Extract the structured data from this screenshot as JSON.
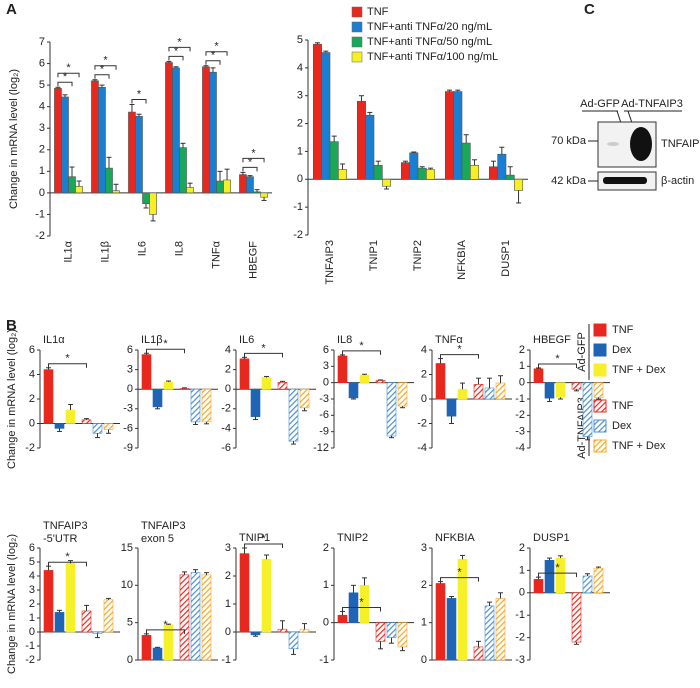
{
  "panel_labels": [
    "A",
    "B",
    "C"
  ],
  "legend_a": [
    {
      "name": "TNF",
      "color": "#e8281e"
    },
    {
      "name": "TNF+anti TNFα/20 ng/mL",
      "color": "#1b7fd1"
    },
    {
      "name": "TNF+anti TNFα/50 ng/mL",
      "color": "#19a85a"
    },
    {
      "name": "TNF+anti TNFα/100 ng/mL",
      "color": "#f7ef25"
    }
  ],
  "legend_b": {
    "groups": [
      {
        "label": "Ad-GFP",
        "hatched": false,
        "entries": [
          {
            "name": "TNF",
            "color": "#e8281e"
          },
          {
            "name": "Dex",
            "color": "#1f64b5"
          },
          {
            "name": "TNF + Dex",
            "color": "#f5f028"
          }
        ]
      },
      {
        "label": "Ad-TNFAIP3",
        "hatched": true,
        "entries": [
          {
            "name": "TNF",
            "color": "#e8281e"
          },
          {
            "name": "Dex",
            "color": "#4a90d0"
          },
          {
            "name": "TNF + Dex",
            "color": "#f5a623"
          }
        ]
      }
    ]
  },
  "blot": {
    "lanes": [
      "Ad-GFP",
      "Ad-TNFAIP3"
    ],
    "markers": [
      "70 kDa",
      "42 kDa"
    ],
    "bands": [
      "TNFAIP3",
      "β-actin"
    ]
  },
  "chart_data": [
    {
      "type": "bar",
      "ylabel": "Change in mRNA level (log₂)",
      "categories": [
        "IL1α",
        "IL1β",
        "IL6",
        "IL8",
        "TNFα",
        "HBEGF"
      ],
      "series": [
        {
          "values": [
            4.85,
            5.2,
            3.75,
            6.05,
            5.85,
            0.85
          ],
          "errors": [
            0.05,
            0.05,
            0.35,
            0.05,
            0.05,
            0.1
          ]
        },
        {
          "values": [
            4.45,
            4.9,
            3.55,
            5.8,
            5.6,
            0.75
          ],
          "errors": [
            0.1,
            0.1,
            0.1,
            0.05,
            0.2,
            0.05
          ]
        },
        {
          "values": [
            0.75,
            1.15,
            -0.5,
            2.1,
            0.55,
            0.05
          ],
          "errors": [
            0.45,
            0.5,
            0.2,
            0.2,
            0.45,
            0.1
          ]
        },
        {
          "values": [
            0.3,
            0.1,
            -1.0,
            0.25,
            0.6,
            -0.2
          ],
          "errors": [
            0.25,
            0.3,
            0.3,
            0.2,
            0.5,
            0.15
          ]
        }
      ],
      "ylim": [
        -2,
        7
      ],
      "yticks": [
        -2,
        -1,
        0,
        1,
        2,
        3,
        4,
        5,
        6,
        7
      ],
      "significance": [
        {
          "category": 0,
          "bars": [
            0,
            2
          ],
          "label": "*"
        },
        {
          "category": 0,
          "bars": [
            0,
            3
          ],
          "label": "*"
        },
        {
          "category": 1,
          "bars": [
            0,
            2
          ],
          "label": "*"
        },
        {
          "category": 1,
          "bars": [
            0,
            3
          ],
          "label": "*"
        },
        {
          "category": 2,
          "bars": [
            0,
            2
          ],
          "label": "*"
        },
        {
          "category": 3,
          "bars": [
            0,
            2
          ],
          "label": "*"
        },
        {
          "category": 3,
          "bars": [
            0,
            3
          ],
          "label": "*"
        },
        {
          "category": 4,
          "bars": [
            0,
            2
          ],
          "label": "*"
        },
        {
          "category": 4,
          "bars": [
            0,
            3
          ],
          "label": "*"
        },
        {
          "category": 5,
          "bars": [
            0,
            2
          ],
          "label": "*"
        },
        {
          "category": 5,
          "bars": [
            0,
            3
          ],
          "label": "*"
        }
      ]
    },
    {
      "type": "bar",
      "categories": [
        "TNFAIP3",
        "TNIP1",
        "TNIP2",
        "NFKBIA",
        "DUSP1"
      ],
      "series": [
        {
          "values": [
            4.85,
            2.8,
            0.6,
            3.15,
            0.45
          ],
          "errors": [
            0.05,
            0.2,
            0.05,
            0.05,
            0.2
          ]
        },
        {
          "values": [
            4.55,
            2.3,
            0.95,
            3.15,
            0.9
          ],
          "errors": [
            0.05,
            0.1,
            0.03,
            0.05,
            0.25
          ]
        },
        {
          "values": [
            1.35,
            0.5,
            0.4,
            1.3,
            0.15
          ],
          "errors": [
            0.2,
            0.15,
            0.05,
            0.3,
            0.3
          ]
        },
        {
          "values": [
            0.35,
            -0.25,
            0.35,
            0.5,
            -0.4
          ],
          "errors": [
            0.2,
            0.1,
            0.05,
            0.2,
            0.45
          ]
        }
      ],
      "ylim": [
        -2,
        5
      ],
      "yticks": [
        -2,
        -1,
        0,
        1,
        2,
        3,
        4,
        5
      ]
    },
    {
      "type": "bar",
      "title": "IL1α",
      "ylabel": "Change in mRNA level (log₂)",
      "values": [
        4.4,
        -0.4,
        1.1,
        0.3,
        -0.8,
        -0.5
      ],
      "errors": [
        0.15,
        0.25,
        0.45,
        0.1,
        0.35,
        0.3
      ],
      "ylim": [
        -2,
        6
      ],
      "yticks": [
        -2,
        0,
        2,
        4,
        6
      ],
      "significance": [
        {
          "bars": [
            0,
            3
          ],
          "label": "*"
        }
      ]
    },
    {
      "type": "bar",
      "title": "IL1β",
      "values": [
        5.3,
        -2.7,
        1.1,
        0.1,
        -5.0,
        -5.0
      ],
      "errors": [
        0.2,
        0.3,
        0.15,
        0.1,
        0.4,
        0.3
      ],
      "ylim": [
        -9,
        6
      ],
      "yticks": [
        -9,
        -6,
        -3,
        0,
        3,
        6
      ],
      "significance": [
        {
          "bars": [
            0,
            3
          ],
          "label": "*"
        }
      ]
    },
    {
      "type": "bar",
      "title": "IL6",
      "values": [
        3.1,
        -2.8,
        1.2,
        0.7,
        -5.3,
        -1.9
      ],
      "errors": [
        0.15,
        0.3,
        0.1,
        0.1,
        0.3,
        0.3
      ],
      "ylim": [
        -6,
        4
      ],
      "yticks": [
        -6,
        -4,
        -2,
        0,
        2,
        4
      ],
      "significance": [
        {
          "bars": [
            0,
            3
          ],
          "label": "*"
        }
      ]
    },
    {
      "type": "bar",
      "title": "IL8",
      "values": [
        4.9,
        -2.8,
        1.4,
        0.4,
        -9.8,
        -4.3
      ],
      "errors": [
        0.2,
        0.2,
        0.15,
        0.1,
        0.3,
        0.3
      ],
      "ylim": [
        -12,
        6
      ],
      "yticks": [
        -12,
        -9,
        -6,
        -3,
        0,
        3,
        6
      ],
      "significance": [
        {
          "bars": [
            0,
            3
          ],
          "label": "*"
        }
      ]
    },
    {
      "type": "bar",
      "title": "TNFα",
      "values": [
        2.9,
        -1.4,
        0.8,
        1.2,
        0.9,
        1.3
      ],
      "errors": [
        0.4,
        0.6,
        0.5,
        0.5,
        0.8,
        0.6
      ],
      "ylim": [
        -4,
        4
      ],
      "yticks": [
        -4,
        -2,
        0,
        2,
        4
      ],
      "significance": [
        {
          "bars": [
            0,
            3
          ],
          "label": "*"
        }
      ]
    },
    {
      "type": "bar",
      "title": "HBEGF",
      "values": [
        0.85,
        -0.95,
        -0.9,
        -0.4,
        -3.3,
        -0.9
      ],
      "errors": [
        0.05,
        0.2,
        0.1,
        0.1,
        0.2,
        0.1
      ],
      "ylim": [
        -4,
        2
      ],
      "yticks": [
        -4,
        -3,
        -2,
        -1,
        0,
        1,
        2
      ],
      "significance": [
        {
          "bars": [
            0,
            3
          ],
          "label": "*"
        }
      ]
    },
    {
      "type": "bar",
      "title": "TNFAIP3",
      "subtitle": "-5'UTR",
      "ylabel": "Change in mRNA level (log₂)",
      "values": [
        4.4,
        1.4,
        4.9,
        1.5,
        -0.1,
        2.3
      ],
      "errors": [
        0.3,
        0.15,
        0.2,
        0.4,
        0.3,
        0.1
      ],
      "ylim": [
        -2,
        6
      ],
      "yticks": [
        -2,
        -1,
        0,
        1,
        2,
        3,
        4,
        5,
        6
      ],
      "significance": [
        {
          "bars": [
            0,
            3
          ],
          "label": "*"
        }
      ]
    },
    {
      "type": "bar",
      "title": "TNFAIP3",
      "subtitle": "exon 5",
      "values": [
        3.3,
        1.6,
        4.7,
        11.4,
        11.7,
        11.4
      ],
      "errors": [
        0.2,
        0.1,
        0.1,
        0.4,
        0.4,
        0.3
      ],
      "ylim": [
        0,
        15
      ],
      "yticks": [
        0,
        5,
        10,
        15
      ],
      "significance": [
        {
          "bars": [
            0,
            3
          ],
          "label": "*"
        }
      ]
    },
    {
      "type": "bar",
      "title": "TNIP1",
      "values": [
        2.8,
        -0.1,
        2.6,
        0.1,
        -0.6,
        0.1
      ],
      "errors": [
        0.2,
        0.05,
        0.15,
        0.3,
        0.2,
        0.2
      ],
      "ylim": [
        -1,
        3
      ],
      "yticks": [
        -1,
        0,
        1,
        2,
        3
      ],
      "significance": [
        {
          "bars": [
            0,
            3
          ],
          "label": "*"
        }
      ]
    },
    {
      "type": "bar",
      "title": "TNIP2",
      "values": [
        0.2,
        0.8,
        1.0,
        -0.5,
        -0.4,
        -0.65
      ],
      "errors": [
        0.1,
        0.2,
        0.2,
        0.2,
        0.15,
        0.1
      ],
      "ylim": [
        -1,
        2
      ],
      "yticks": [
        -1,
        0,
        1,
        2
      ],
      "significance": [
        {
          "bars": [
            0,
            3
          ],
          "label": "*"
        }
      ]
    },
    {
      "type": "bar",
      "title": "NFKBIA",
      "values": [
        2.05,
        1.65,
        2.7,
        0.35,
        1.45,
        1.65
      ],
      "errors": [
        0.05,
        0.05,
        0.1,
        0.15,
        0.1,
        0.15
      ],
      "ylim": [
        0,
        3
      ],
      "yticks": [
        0,
        1,
        2,
        3
      ],
      "significance": [
        {
          "bars": [
            0,
            3
          ],
          "label": "*"
        }
      ]
    },
    {
      "type": "bar",
      "title": "DUSP1",
      "values": [
        0.6,
        1.45,
        1.55,
        -2.2,
        0.75,
        1.1
      ],
      "errors": [
        0.1,
        0.1,
        0.1,
        0.1,
        0.1,
        0.05
      ],
      "ylim": [
        -3,
        2
      ],
      "yticks": [
        -3,
        -2,
        -1,
        0,
        1,
        2
      ],
      "significance": [
        {
          "bars": [
            0,
            3
          ],
          "label": "*"
        }
      ]
    }
  ]
}
